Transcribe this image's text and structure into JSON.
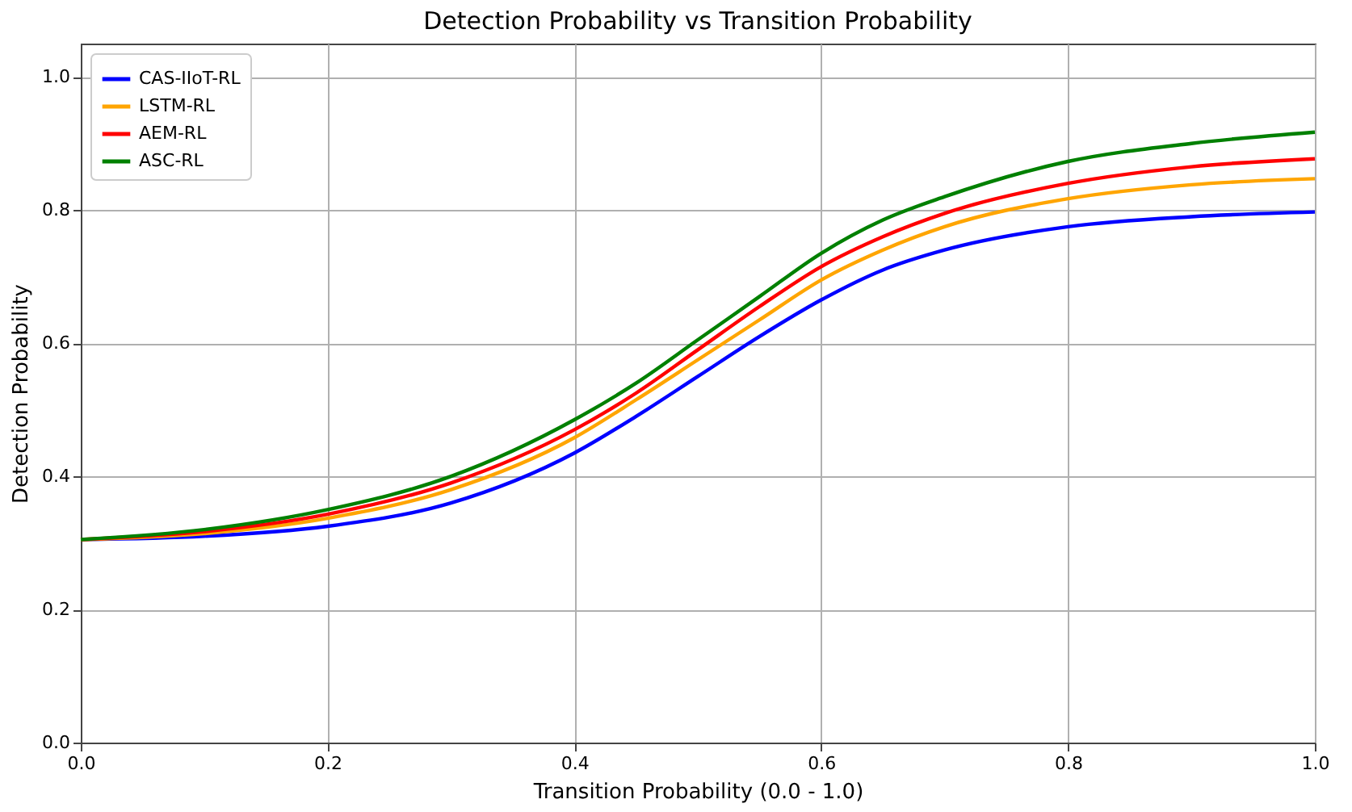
{
  "chart_data": {
    "type": "line",
    "title": "Detection Probability vs Transition Probability",
    "xlabel": "Transition Probability (0.0 - 1.0)",
    "ylabel": "Detection Probability",
    "x": [
      0,
      0.1,
      0.2,
      0.3,
      0.4,
      0.45,
      0.5,
      0.55,
      0.6,
      0.65,
      0.7,
      0.8,
      0.9,
      1.0
    ],
    "series": [
      {
        "name": "CAS-IIoT-RL",
        "color": "#0000ff",
        "values": [
          0.305,
          0.31,
          0.325,
          0.36,
          0.435,
          0.49,
          0.55,
          0.61,
          0.665,
          0.71,
          0.74,
          0.775,
          0.79,
          0.797
        ]
      },
      {
        "name": "LSTM-RL",
        "color": "#ffa500",
        "values": [
          0.305,
          0.314,
          0.337,
          0.38,
          0.458,
          0.515,
          0.575,
          0.635,
          0.695,
          0.74,
          0.775,
          0.817,
          0.838,
          0.847
        ]
      },
      {
        "name": "AEM-RL",
        "color": "#ff0000",
        "values": [
          0.305,
          0.317,
          0.343,
          0.39,
          0.47,
          0.525,
          0.59,
          0.655,
          0.715,
          0.76,
          0.795,
          0.84,
          0.865,
          0.877
        ]
      },
      {
        "name": "ASC-RL",
        "color": "#008000",
        "values": [
          0.305,
          0.32,
          0.35,
          0.4,
          0.485,
          0.54,
          0.605,
          0.67,
          0.735,
          0.785,
          0.82,
          0.873,
          0.9,
          0.917
        ]
      }
    ],
    "xlim": [
      0,
      1.0
    ],
    "xticks": [
      {
        "value": 0,
        "label": "0.0"
      },
      0.2,
      0.4,
      0.6,
      0.8,
      {
        "value": 1,
        "label": "1.0"
      }
    ],
    "ylim": [
      0,
      1.05
    ],
    "yticks": [
      {
        "value": 0,
        "label": "0.0"
      },
      0.2,
      0.4,
      0.6,
      0.8,
      {
        "value": 1,
        "label": "1.0"
      }
    ],
    "grid": true,
    "legend": "top left",
    "line_style": "solid",
    "marker": "none"
  }
}
